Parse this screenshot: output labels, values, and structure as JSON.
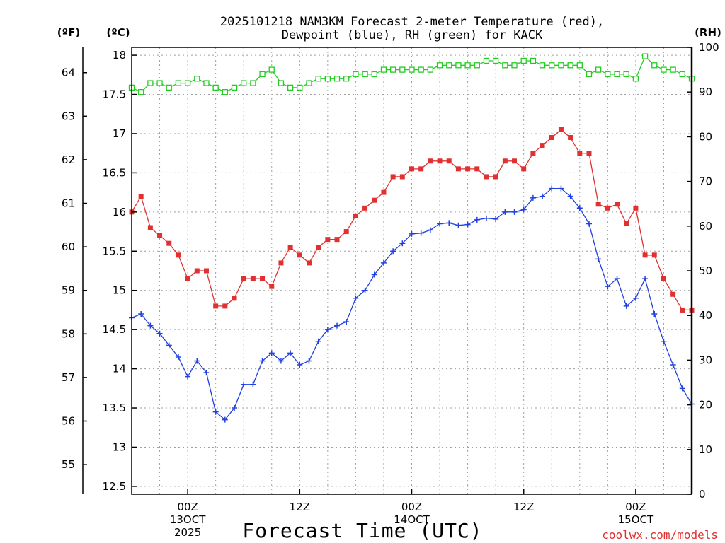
{
  "chart_data": {
    "type": "line",
    "title_line1": "2025101218 NAM3KM Forecast 2-meter Temperature (red),",
    "title_line2": "Dewpoint (blue), RH (green) for KACK",
    "xlabel": "Forecast Time (UTC)",
    "credit": "coolwx.com/models",
    "left_axis_f_label": "(ºF)",
    "left_axis_c_label": "(ºC)",
    "right_axis_label": "(RH)",
    "celsius_ticks": [
      "12.5",
      "13",
      "13.5",
      "14",
      "14.5",
      "15",
      "15.5",
      "16",
      "16.5",
      "17",
      "17.5",
      "18"
    ],
    "fahrenheit_ticks": [
      "55",
      "56",
      "57",
      "58",
      "59",
      "60",
      "61",
      "62",
      "63",
      "64"
    ],
    "rh_ticks": [
      "0",
      "10",
      "20",
      "30",
      "40",
      "50",
      "60",
      "70",
      "80",
      "90",
      "100"
    ],
    "x_ticks": [
      {
        "hour": 6,
        "label": "00Z",
        "sub1": "13OCT",
        "sub2": "2025"
      },
      {
        "hour": 18,
        "label": "12Z",
        "sub1": "",
        "sub2": ""
      },
      {
        "hour": 30,
        "label": "00Z",
        "sub1": "14OCT",
        "sub2": ""
      },
      {
        "hour": 42,
        "label": "12Z",
        "sub1": "",
        "sub2": ""
      },
      {
        "hour": 54,
        "label": "00Z",
        "sub1": "15OCT",
        "sub2": ""
      }
    ],
    "x_range_hours": [
      0,
      60
    ],
    "celsius_range": [
      12.4,
      18.1
    ],
    "rh_range": [
      0,
      100
    ],
    "series": [
      {
        "name": "Temperature",
        "unit": "°C",
        "color": "#e03030",
        "marker": "filled-square",
        "values": [
          16.0,
          16.2,
          15.8,
          15.7,
          15.6,
          15.45,
          15.15,
          15.25,
          15.25,
          14.8,
          14.8,
          14.9,
          15.15,
          15.15,
          15.15,
          15.05,
          15.35,
          15.55,
          15.45,
          15.35,
          15.55,
          15.65,
          15.65,
          15.75,
          15.95,
          16.05,
          16.15,
          16.25,
          16.45,
          16.45,
          16.55,
          16.55,
          16.65,
          16.65,
          16.65,
          16.55,
          16.55,
          16.55,
          16.45,
          16.45,
          16.65,
          16.65,
          16.55,
          16.75,
          16.85,
          16.95,
          17.05,
          16.95,
          16.75,
          16.75,
          16.1,
          16.05,
          16.1,
          15.85,
          16.05,
          15.45,
          15.45,
          15.15,
          14.95,
          14.75,
          14.75
        ]
      },
      {
        "name": "Dewpoint",
        "unit": "°C",
        "color": "#2040e0",
        "marker": "plus",
        "values": [
          14.65,
          14.7,
          14.55,
          14.45,
          14.3,
          14.15,
          13.9,
          14.1,
          13.95,
          13.45,
          13.35,
          13.5,
          13.8,
          13.8,
          14.1,
          14.2,
          14.1,
          14.2,
          14.05,
          14.1,
          14.35,
          14.5,
          14.55,
          14.6,
          14.9,
          15.0,
          15.2,
          15.35,
          15.5,
          15.6,
          15.72,
          15.73,
          15.77,
          15.85,
          15.86,
          15.83,
          15.84,
          15.9,
          15.92,
          15.91,
          16.0,
          16.0,
          16.03,
          16.18,
          16.2,
          16.3,
          16.3,
          16.2,
          16.05,
          15.85,
          15.4,
          15.05,
          15.15,
          14.8,
          14.9,
          15.15,
          14.7,
          14.35,
          14.05,
          13.75,
          13.55
        ]
      },
      {
        "name": "RH",
        "unit": "%",
        "color": "#22cc22",
        "marker": "open-square",
        "values": [
          91,
          90,
          92,
          92,
          91,
          92,
          92,
          93,
          92,
          91,
          90,
          91,
          92,
          92,
          94,
          95,
          92,
          91,
          91,
          92,
          93,
          93,
          93,
          93,
          94,
          94,
          94,
          95,
          95,
          95,
          95,
          95,
          95,
          96,
          96,
          96,
          96,
          96,
          97,
          97,
          96,
          96,
          97,
          97,
          96,
          96,
          96,
          96,
          96,
          94,
          95,
          94,
          94,
          94,
          93,
          98,
          96,
          95,
          95,
          94,
          93
        ]
      }
    ]
  }
}
